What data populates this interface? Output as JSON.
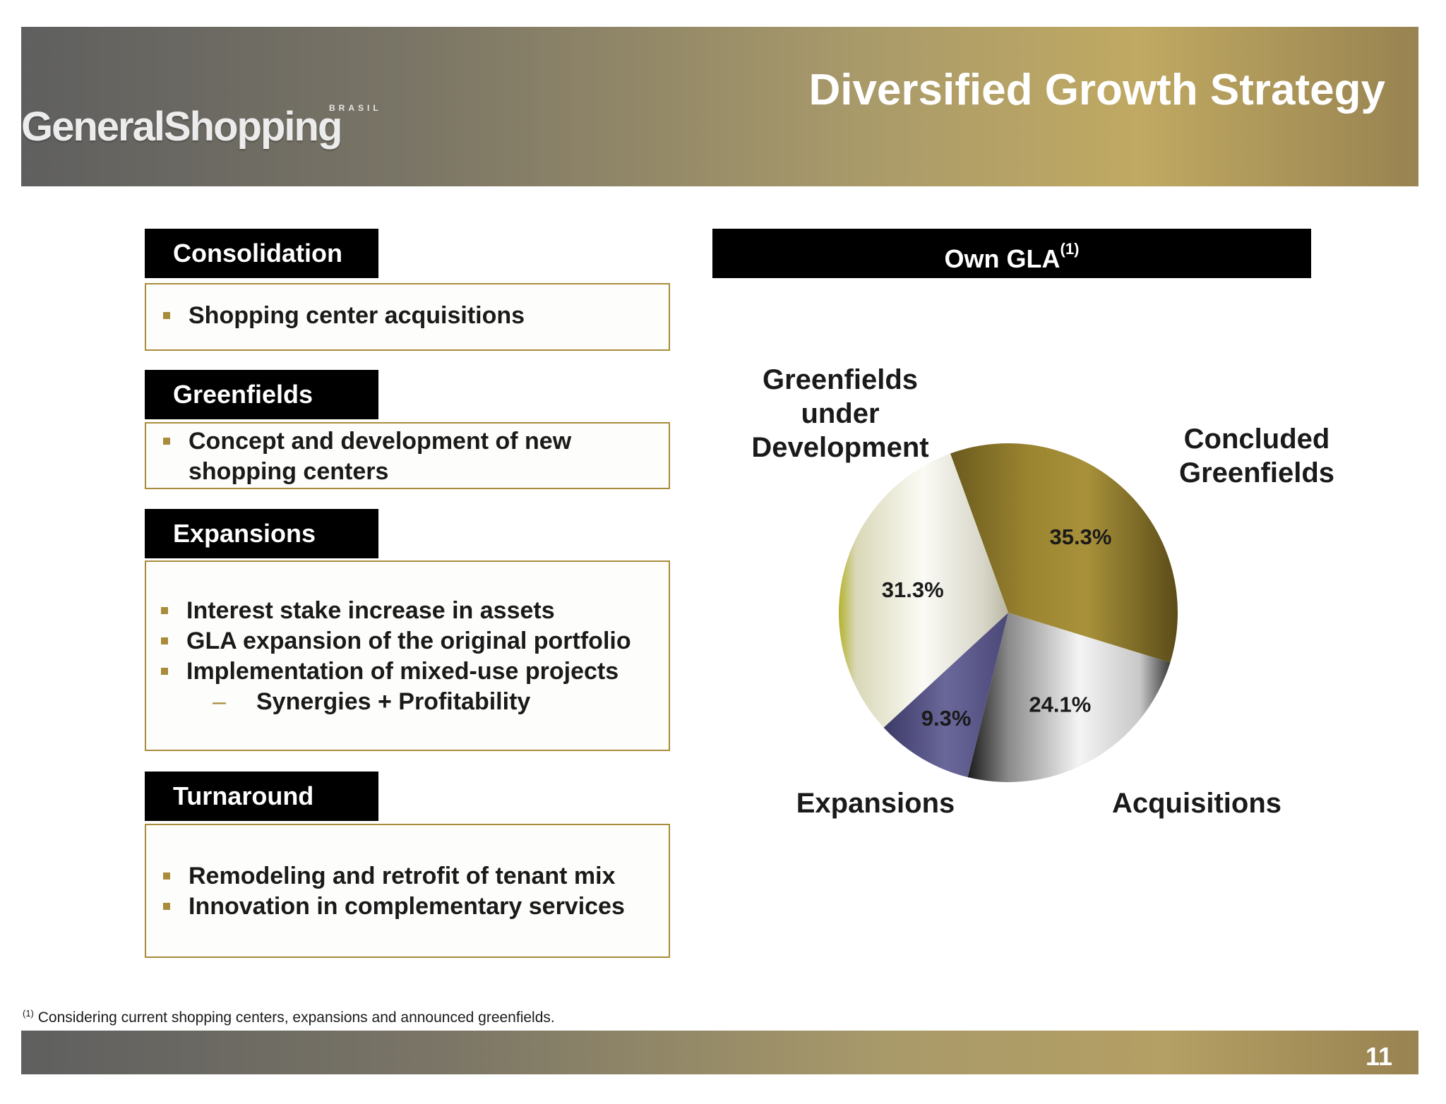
{
  "header": {
    "title": "Diversified Growth Strategy",
    "logo_text": "GeneralShopping",
    "logo_subtext": "BRASIL"
  },
  "sections": [
    {
      "label": "Consolidation",
      "bullets": [
        "Shopping center acquisitions"
      ]
    },
    {
      "label": "Greenfields",
      "bullets": [
        "Concept and development of new",
        "shopping centers"
      ]
    },
    {
      "label": "Expansions",
      "bullets": [
        "Interest stake increase in assets",
        "GLA expansion of the original portfolio",
        "Implementation of mixed-use projects"
      ],
      "sub_bullet": "Synergies + Profitability"
    },
    {
      "label": "Turnaround",
      "bullets": [
        "Remodeling and retrofit of tenant mix",
        "Innovation in complementary services"
      ]
    }
  ],
  "chart_header": {
    "title": "Own GLA",
    "superscript": "(1)"
  },
  "chart_data": {
    "type": "pie",
    "title": "Own GLA(1)",
    "slices": [
      {
        "label": "Concluded Greenfields",
        "value": 35.3,
        "display": "35.3%",
        "color": "#a08a33"
      },
      {
        "label": "Acquisitions",
        "value": 24.1,
        "display": "24.1%",
        "color": "#d9d9d9"
      },
      {
        "label": "Expansions",
        "value": 9.3,
        "display": "9.3%",
        "color": "#5f5c8c"
      },
      {
        "label": "Greenfields under Development",
        "value": 31.3,
        "display": "31.3%",
        "color": "#eceadf"
      }
    ]
  },
  "chart_labels": {
    "greenfields_dev_line1": "Greenfields",
    "greenfields_dev_line2": "under Development",
    "concluded_line1": "Concluded",
    "concluded_line2": "Greenfields",
    "expansions": "Expansions",
    "acquisitions": "Acquisitions"
  },
  "footnote": {
    "marker": "(1)",
    "text": "Considering current shopping centers, expansions and announced greenfields."
  },
  "page_number": "11"
}
